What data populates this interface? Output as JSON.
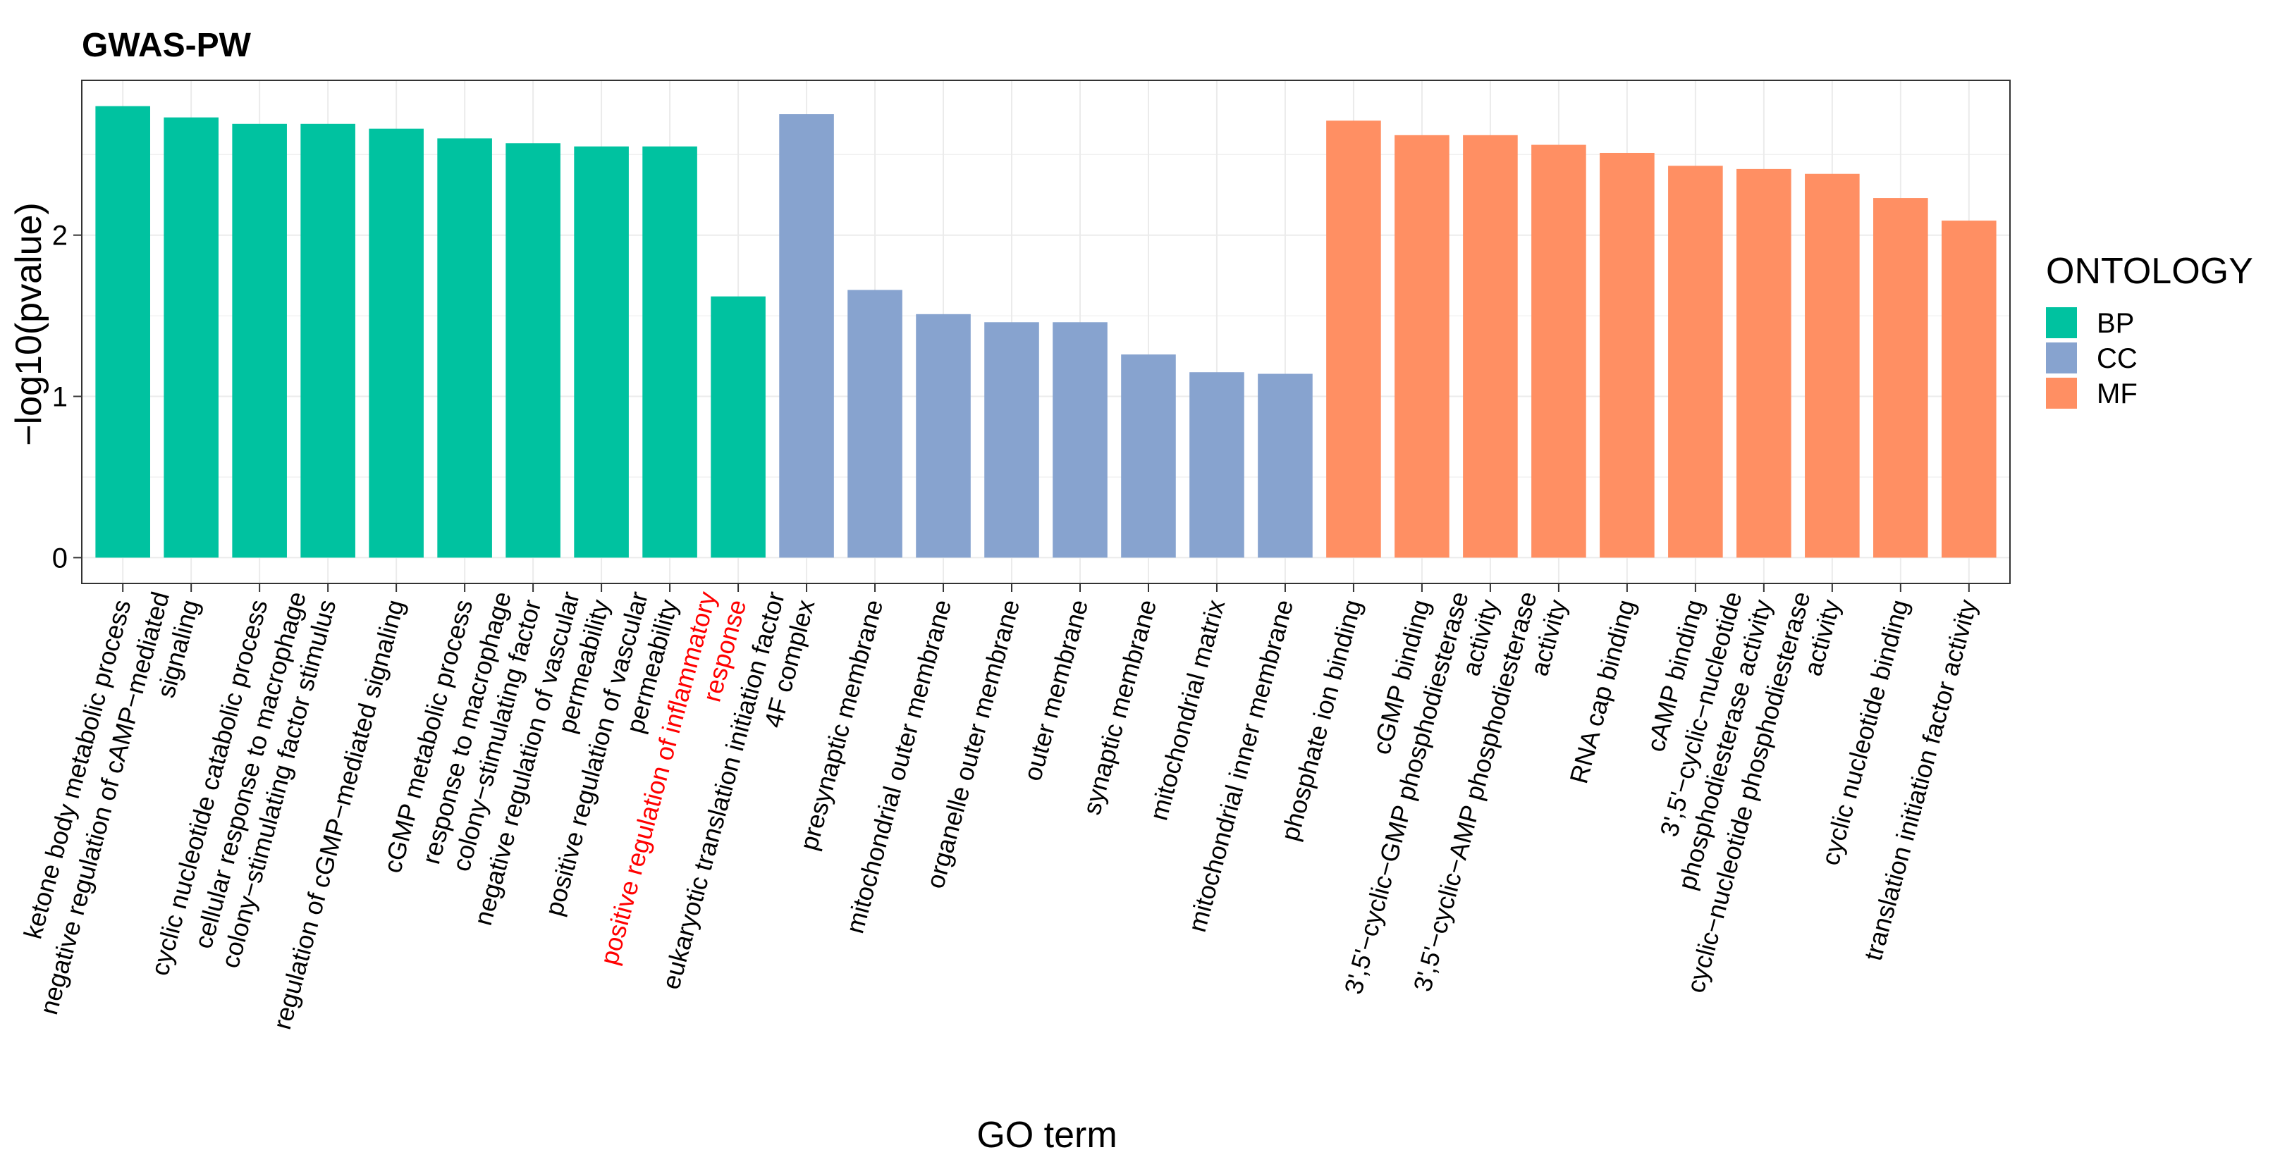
{
  "chart_data": {
    "type": "bar",
    "title": "GWAS-PW",
    "xlabel": "GO term",
    "ylabel": "−log10(pvalue)",
    "ylim": [
      -0.16,
      2.96
    ],
    "y_ticks": [
      0,
      1,
      2
    ],
    "y_tick_labels": [
      "0",
      "1",
      "2"
    ],
    "grid": true,
    "legend": {
      "title": "ONTOLOGY",
      "position": "right",
      "entries": [
        {
          "name": "BP",
          "color": "#00C2A0"
        },
        {
          "name": "CC",
          "color": "#87A3CF"
        },
        {
          "name": "MF",
          "color": "#FF8F63"
        }
      ]
    },
    "highlight_color": "#FF0000",
    "categories": [
      {
        "lines": [
          "ketone body metabolic process"
        ],
        "ontology": "BP",
        "value": 2.8,
        "highlight": false
      },
      {
        "lines": [
          "negative regulation of cAMP−mediated",
          "signaling"
        ],
        "ontology": "BP",
        "value": 2.73,
        "highlight": false
      },
      {
        "lines": [
          "cyclic nucleotide catabolic process"
        ],
        "ontology": "BP",
        "value": 2.69,
        "highlight": false
      },
      {
        "lines": [
          "cellular response to macrophage",
          "colony−stimulating factor stimulus"
        ],
        "ontology": "BP",
        "value": 2.69,
        "highlight": false
      },
      {
        "lines": [
          "regulation of cGMP−mediated signaling"
        ],
        "ontology": "BP",
        "value": 2.66,
        "highlight": false
      },
      {
        "lines": [
          "cGMP metabolic process"
        ],
        "ontology": "BP",
        "value": 2.6,
        "highlight": false
      },
      {
        "lines": [
          "response to macrophage",
          "colony−stimulating factor"
        ],
        "ontology": "BP",
        "value": 2.57,
        "highlight": false
      },
      {
        "lines": [
          "negative regulation of vascular",
          "permeability"
        ],
        "ontology": "BP",
        "value": 2.55,
        "highlight": false
      },
      {
        "lines": [
          "positive regulation of vascular",
          "permeability"
        ],
        "ontology": "BP",
        "value": 2.55,
        "highlight": false
      },
      {
        "lines": [
          "positive regulation of inflammatory",
          "response"
        ],
        "ontology": "BP",
        "value": 1.62,
        "highlight": true
      },
      {
        "lines": [
          "eukaryotic translation initiation factor",
          "4F complex"
        ],
        "ontology": "CC",
        "value": 2.75,
        "highlight": false
      },
      {
        "lines": [
          "presynaptic membrane"
        ],
        "ontology": "CC",
        "value": 1.66,
        "highlight": false
      },
      {
        "lines": [
          "mitochondrial outer membrane"
        ],
        "ontology": "CC",
        "value": 1.51,
        "highlight": false
      },
      {
        "lines": [
          "organelle outer membrane"
        ],
        "ontology": "CC",
        "value": 1.46,
        "highlight": false
      },
      {
        "lines": [
          "outer membrane"
        ],
        "ontology": "CC",
        "value": 1.46,
        "highlight": false
      },
      {
        "lines": [
          "synaptic membrane"
        ],
        "ontology": "CC",
        "value": 1.26,
        "highlight": false
      },
      {
        "lines": [
          "mitochondrial matrix"
        ],
        "ontology": "CC",
        "value": 1.15,
        "highlight": false
      },
      {
        "lines": [
          "mitochondrial inner membrane"
        ],
        "ontology": "CC",
        "value": 1.14,
        "highlight": false
      },
      {
        "lines": [
          "phosphate ion binding"
        ],
        "ontology": "MF",
        "value": 2.71,
        "highlight": false
      },
      {
        "lines": [
          "cGMP binding"
        ],
        "ontology": "MF",
        "value": 2.62,
        "highlight": false
      },
      {
        "lines": [
          "3',5'−cyclic−GMP phosphodiesterase",
          "activity"
        ],
        "ontology": "MF",
        "value": 2.62,
        "highlight": false
      },
      {
        "lines": [
          "3',5'−cyclic−AMP phosphodiesterase",
          "activity"
        ],
        "ontology": "MF",
        "value": 2.56,
        "highlight": false
      },
      {
        "lines": [
          "RNA cap binding"
        ],
        "ontology": "MF",
        "value": 2.51,
        "highlight": false
      },
      {
        "lines": [
          "cAMP binding"
        ],
        "ontology": "MF",
        "value": 2.43,
        "highlight": false
      },
      {
        "lines": [
          "3',5'−cyclic−nucleotide",
          "phosphodiesterase activity"
        ],
        "ontology": "MF",
        "value": 2.41,
        "highlight": false
      },
      {
        "lines": [
          "cyclic−nucleotide phosphodiesterase",
          "activity"
        ],
        "ontology": "MF",
        "value": 2.38,
        "highlight": false
      },
      {
        "lines": [
          "cyclic nucleotide binding"
        ],
        "ontology": "MF",
        "value": 2.23,
        "highlight": false
      },
      {
        "lines": [
          "translation initiation factor activity"
        ],
        "ontology": "MF",
        "value": 2.09,
        "highlight": false
      }
    ]
  }
}
